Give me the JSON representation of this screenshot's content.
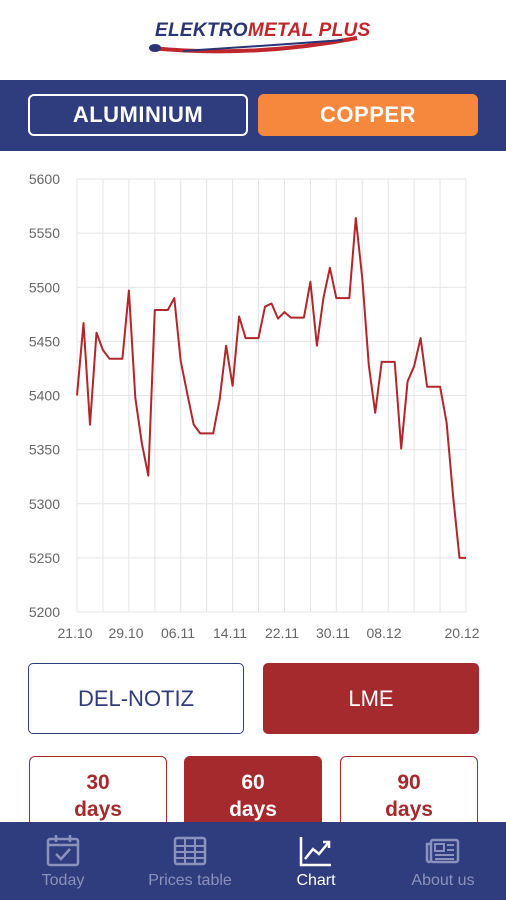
{
  "brand": {
    "part1": "ELEKTRO",
    "part2": "METAL PLUS"
  },
  "metal_tabs": [
    {
      "label": "ALUMINIUM",
      "active": false
    },
    {
      "label": "COPPER",
      "active": true
    }
  ],
  "source_tabs": [
    {
      "label": "DEL-NOTIZ",
      "active": false
    },
    {
      "label": "LME",
      "active": true
    }
  ],
  "day_ranges": [
    {
      "value": "30",
      "unit": "days",
      "active": false
    },
    {
      "value": "60",
      "unit": "days",
      "active": true
    },
    {
      "value": "90",
      "unit": "days",
      "active": false
    }
  ],
  "nav": [
    {
      "label": "Today",
      "icon": "calendar-check-icon",
      "active": false
    },
    {
      "label": "Prices table",
      "icon": "table-icon",
      "active": false
    },
    {
      "label": "Chart",
      "icon": "chart-line-icon",
      "active": true
    },
    {
      "label": "About us",
      "icon": "newspaper-icon",
      "active": false
    }
  ],
  "colors": {
    "navy": "#2f3c7e",
    "orange": "#f5883d",
    "dark_red": "#a52a2e",
    "line": "#b0262b"
  },
  "chart_data": {
    "type": "line",
    "ylim": [
      5200,
      5600
    ],
    "yticks": [
      "5600",
      "5550",
      "5500",
      "5450",
      "5400",
      "5350",
      "5300",
      "5250",
      "5200"
    ],
    "xtick_labels": [
      "21.10",
      "29.10",
      "06.11",
      "14.11",
      "22.11",
      "30.11",
      "08.12",
      "20.12"
    ],
    "grid": true,
    "series": [
      {
        "values": [
          5400,
          5467,
          5373,
          5458,
          5442,
          5434,
          5434,
          5434,
          5497,
          5398,
          5356,
          5326,
          5479,
          5479,
          5479,
          5490,
          5432,
          5402,
          5373,
          5365,
          5365,
          5365,
          5396,
          5446,
          5409,
          5473,
          5453,
          5453,
          5453,
          5482,
          5485,
          5471,
          5477,
          5472,
          5472,
          5472,
          5505,
          5446,
          5490,
          5518,
          5490,
          5490,
          5490,
          5564,
          5508,
          5428,
          5384,
          5431,
          5431,
          5431,
          5351,
          5413,
          5427,
          5453,
          5408,
          5408,
          5408,
          5375,
          5308,
          5250,
          5250
        ]
      }
    ]
  }
}
